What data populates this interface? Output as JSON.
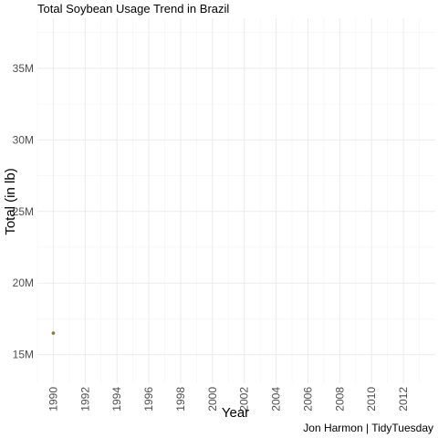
{
  "chart_data": {
    "type": "scatter",
    "title": "Total Soybean Usage Trend in Brazil",
    "xlabel": "Year",
    "ylabel": "Total (in lb)",
    "caption": "Jon Harmon | TidyTuesday",
    "x_ticks": [
      "1990",
      "1992",
      "1994",
      "1996",
      "1998",
      "2000",
      "2002",
      "2004",
      "2006",
      "2008",
      "2010",
      "2012"
    ],
    "y_ticks": [
      "15M",
      "20M",
      "25M",
      "30M",
      "35M"
    ],
    "xlim": [
      1989,
      2014
    ],
    "ylim": [
      13000000,
      38500000
    ],
    "grid": true,
    "points": [
      {
        "x": 1990,
        "y": 16500000
      }
    ],
    "colors": {
      "point": "#8a7a3a"
    }
  }
}
